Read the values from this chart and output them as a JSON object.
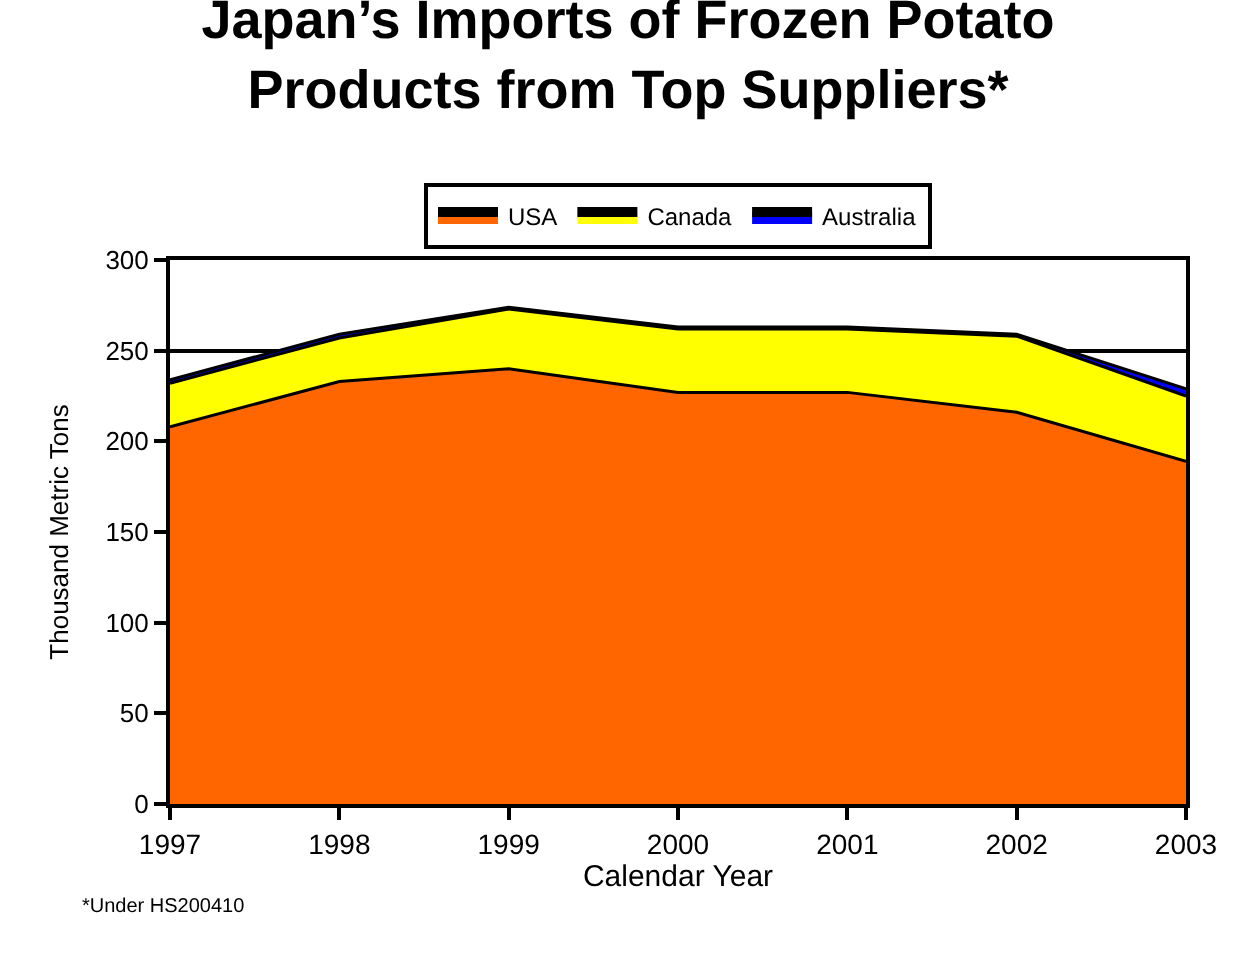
{
  "chart_data": {
    "type": "area",
    "stacked": true,
    "title": "Japan’s Imports of Frozen Potato\nProducts from Top Suppliers*",
    "xlabel": "Calendar Year",
    "ylabel": "Thousand Metric Tons",
    "x": [
      1997,
      1998,
      1999,
      2000,
      2001,
      2002,
      2003
    ],
    "series": [
      {
        "name": "USA",
        "color": "#ff6600",
        "values": [
          208,
          233,
          240,
          227,
          227,
          216,
          189
        ]
      },
      {
        "name": "Canada",
        "color": "#ffff00",
        "values": [
          24,
          24,
          33,
          35,
          35,
          42,
          36
        ]
      },
      {
        "name": "Australia",
        "color": "#0000ff",
        "values": [
          2,
          2,
          1,
          1,
          1,
          1,
          4
        ]
      }
    ],
    "xlim": [
      1997,
      2003
    ],
    "xticks": [
      1997,
      1998,
      1999,
      2000,
      2001,
      2002,
      2003
    ],
    "ylim": [
      0,
      300
    ],
    "yticks": [
      0,
      50,
      100,
      150,
      200,
      250,
      300
    ],
    "grid": "y",
    "legend": "top",
    "annotations": [
      "*Under HS200410"
    ]
  }
}
